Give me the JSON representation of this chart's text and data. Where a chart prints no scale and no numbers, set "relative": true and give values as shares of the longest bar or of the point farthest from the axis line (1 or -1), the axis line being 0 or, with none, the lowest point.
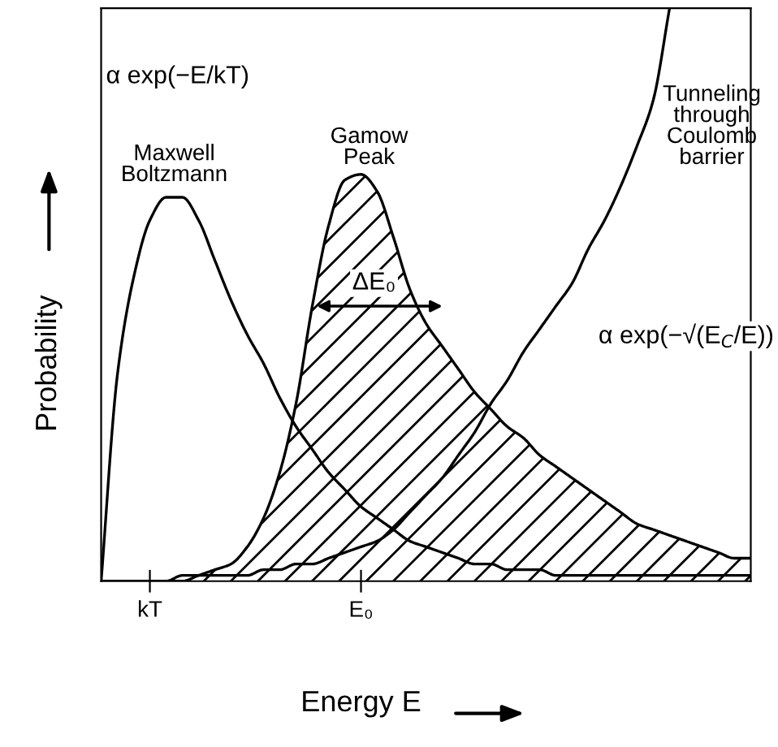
{
  "chart_data": {
    "type": "line",
    "relative": true,
    "xlabel": "Energy E",
    "ylabel": "Probability",
    "categories": [
      null,
      null,
      null,
      "kT",
      null,
      null,
      null,
      null,
      null,
      null,
      null,
      null,
      null,
      null,
      null,
      null,
      "E₀",
      null,
      null,
      null,
      null,
      null,
      null,
      null,
      null,
      null,
      null,
      null,
      null,
      null,
      null,
      null,
      null,
      null,
      null,
      null,
      null,
      null,
      null,
      null,
      null
    ],
    "series": [
      {
        "name": "Maxwell Boltzmann",
        "type": "line",
        "color": "#000000",
        "values": [
          0,
          0.36,
          0.53,
          0.63,
          0.67,
          0.67,
          0.63,
          0.56,
          0.49,
          0.43,
          0.38,
          0.32,
          0.27,
          0.23,
          0.19,
          0.16,
          0.13,
          0.11,
          0.09,
          0.07,
          0.06,
          0.05,
          0.04,
          0.03,
          0.03,
          0.02,
          0.02,
          0.02,
          0.01,
          0.01,
          0.01,
          0.01,
          0.01,
          0.01,
          0.01,
          0.01,
          0.01,
          0.01,
          0.01,
          0.01,
          0.01
        ]
      },
      {
        "name": "Gamow Peak",
        "type": "area",
        "color": "#000000",
        "values": [
          0,
          0,
          0,
          0,
          0,
          0,
          0.01,
          0.02,
          0.03,
          0.06,
          0.11,
          0.19,
          0.31,
          0.48,
          0.62,
          0.7,
          0.71,
          0.68,
          0.6,
          0.51,
          0.45,
          0.41,
          0.37,
          0.33,
          0.3,
          0.27,
          0.25,
          0.22,
          0.2,
          0.18,
          0.16,
          0.14,
          0.12,
          0.1,
          0.09,
          0.08,
          0.07,
          0.06,
          0.05,
          0.04,
          0.04
        ]
      },
      {
        "name": "Tunneling through Coulomb barrier",
        "type": "line",
        "color": "#000000",
        "values": [
          0,
          0,
          0,
          0,
          0,
          0.01,
          0.01,
          0.01,
          0.01,
          0.01,
          0.02,
          0.02,
          0.03,
          0.03,
          0.04,
          0.05,
          0.06,
          0.07,
          0.09,
          0.12,
          0.15,
          0.18,
          0.22,
          0.26,
          0.31,
          0.35,
          0.4,
          0.44,
          0.48,
          0.52,
          0.58,
          0.63,
          0.69,
          0.76,
          0.84,
          1,
          null,
          null,
          null,
          null,
          null
        ]
      }
    ],
    "annotations": [
      "α exp(−E/kT)",
      "ΔE₀",
      "α exp(−√(E$_{C}$/E))"
    ],
    "legend": false,
    "grid": false
  }
}
